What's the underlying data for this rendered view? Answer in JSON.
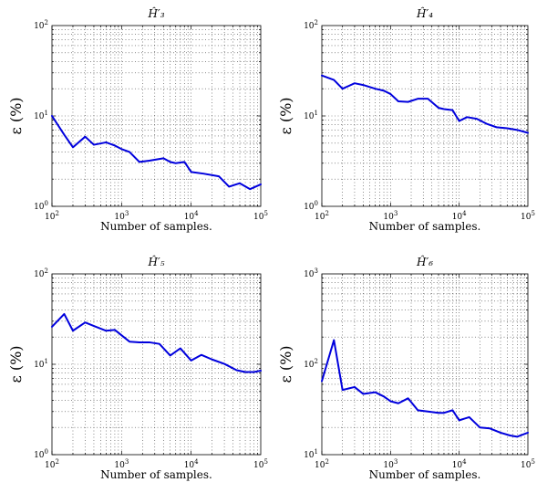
{
  "chart_data": [
    {
      "type": "line",
      "title": "Ĥ′₃",
      "xlabel": "Number of samples.",
      "ylabel": "ε (%)",
      "xscale": "log",
      "yscale": "log",
      "grid": true,
      "xlim": [
        100,
        100000
      ],
      "ylim": [
        1,
        100
      ],
      "xticks": [
        {
          "base": "10",
          "exp": "2"
        },
        {
          "base": "10",
          "exp": "3"
        },
        {
          "base": "10",
          "exp": "4"
        },
        {
          "base": "10",
          "exp": "5"
        }
      ],
      "yticks": [
        {
          "base": "10",
          "exp": "0"
        },
        {
          "base": "10",
          "exp": "1"
        },
        {
          "base": "10",
          "exp": "2"
        }
      ],
      "color": "#0000dd",
      "x": [
        100,
        150,
        200,
        300,
        400,
        600,
        800,
        1000,
        1300,
        1800,
        2500,
        4000,
        5000,
        6000,
        8000,
        10000,
        15000,
        25000,
        35000,
        50000,
        70000,
        100000
      ],
      "y": [
        10,
        6.2,
        4.5,
        5.9,
        4.8,
        5.1,
        4.7,
        4.3,
        4.0,
        3.1,
        3.2,
        3.4,
        3.1,
        3.0,
        3.1,
        2.4,
        2.3,
        2.15,
        1.65,
        1.8,
        1.55,
        1.75
      ]
    },
    {
      "type": "line",
      "title": "Ĥ′₄",
      "xlabel": "Number of samples.",
      "ylabel": "ε (%)",
      "xscale": "log",
      "yscale": "log",
      "grid": true,
      "xlim": [
        100,
        100000
      ],
      "ylim": [
        1,
        100
      ],
      "xticks": [
        {
          "base": "10",
          "exp": "2"
        },
        {
          "base": "10",
          "exp": "3"
        },
        {
          "base": "10",
          "exp": "4"
        },
        {
          "base": "10",
          "exp": "5"
        }
      ],
      "yticks": [
        {
          "base": "10",
          "exp": "0"
        },
        {
          "base": "10",
          "exp": "1"
        },
        {
          "base": "10",
          "exp": "2"
        }
      ],
      "color": "#0000dd",
      "x": [
        100,
        150,
        200,
        300,
        400,
        600,
        800,
        1000,
        1300,
        1800,
        2500,
        3500,
        5000,
        6000,
        8000,
        10000,
        13000,
        18000,
        25000,
        35000,
        50000,
        70000,
        100000
      ],
      "y": [
        28,
        25,
        20,
        23,
        22,
        20,
        19,
        17.5,
        14.5,
        14.3,
        15.5,
        15.5,
        12.3,
        11.9,
        11.6,
        8.8,
        9.7,
        9.3,
        8.2,
        7.5,
        7.3,
        7.0,
        6.5
      ]
    },
    {
      "type": "line",
      "title": "Ĥ′₅",
      "xlabel": "Number of samples.",
      "ylabel": "ε (%)",
      "xscale": "log",
      "yscale": "log",
      "grid": true,
      "xlim": [
        100,
        100000
      ],
      "ylim": [
        1,
        100
      ],
      "xticks": [
        {
          "base": "10",
          "exp": "2"
        },
        {
          "base": "10",
          "exp": "3"
        },
        {
          "base": "10",
          "exp": "4"
        },
        {
          "base": "10",
          "exp": "5"
        }
      ],
      "yticks": [
        {
          "base": "10",
          "exp": "0"
        },
        {
          "base": "10",
          "exp": "1"
        },
        {
          "base": "10",
          "exp": "2"
        }
      ],
      "color": "#0000dd",
      "x": [
        100,
        150,
        200,
        300,
        400,
        600,
        800,
        1300,
        1800,
        2500,
        3500,
        5000,
        7000,
        10000,
        14000,
        20000,
        30000,
        45000,
        60000,
        80000,
        100000
      ],
      "y": [
        26,
        36,
        23.5,
        29,
        26.5,
        23.5,
        24,
        17.8,
        17.5,
        17.5,
        16.8,
        12.5,
        15,
        11,
        12.7,
        11.3,
        10.1,
        8.6,
        8.2,
        8.2,
        8.5
      ]
    },
    {
      "type": "line",
      "title": "Ĥ′₆",
      "xlabel": "Number of samples.",
      "ylabel": "ε (%)",
      "xscale": "log",
      "yscale": "log",
      "grid": true,
      "xlim": [
        100,
        100000
      ],
      "ylim": [
        10,
        1000
      ],
      "xticks": [
        {
          "base": "10",
          "exp": "2"
        },
        {
          "base": "10",
          "exp": "3"
        },
        {
          "base": "10",
          "exp": "4"
        },
        {
          "base": "10",
          "exp": "5"
        }
      ],
      "yticks": [
        {
          "base": "10",
          "exp": "1"
        },
        {
          "base": "10",
          "exp": "2"
        },
        {
          "base": "10",
          "exp": "3"
        }
      ],
      "color": "#0000dd",
      "x": [
        100,
        150,
        200,
        300,
        400,
        600,
        800,
        1000,
        1300,
        1800,
        2500,
        3500,
        5000,
        6000,
        8000,
        10000,
        14000,
        20000,
        28000,
        40000,
        55000,
        70000,
        100000
      ],
      "y": [
        65,
        185,
        52,
        56,
        47,
        49,
        44,
        39,
        37,
        42,
        31,
        30,
        29,
        29,
        31,
        24,
        26,
        20,
        19.5,
        17.5,
        16.3,
        15.8,
        17.5
      ]
    }
  ]
}
